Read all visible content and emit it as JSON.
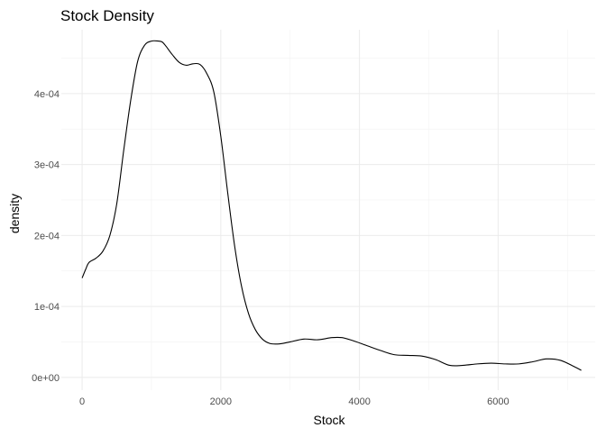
{
  "chart_data": {
    "type": "line",
    "title": "Stock Density",
    "xlabel": "Stock",
    "ylabel": "density",
    "xlim": [
      -300,
      7400
    ],
    "ylim": [
      -1.8e-05,
      0.00049
    ],
    "x_ticks": [
      0,
      2000,
      4000,
      6000
    ],
    "x_tick_labels": [
      "0",
      "2000",
      "4000",
      "6000"
    ],
    "y_ticks": [
      0,
      0.0001,
      0.0002,
      0.0003,
      0.0004
    ],
    "y_tick_labels": [
      "0e+00",
      "1e-04",
      "2e-04",
      "3e-04",
      "4e-04"
    ],
    "grid": true,
    "legend": "none",
    "series": [
      {
        "color": "#000000",
        "x": [
          0,
          50,
          100,
          200,
          300,
          400,
          500,
          600,
          700,
          800,
          900,
          1000,
          1100,
          1150,
          1200,
          1300,
          1400,
          1500,
          1600,
          1700,
          1800,
          1900,
          2000,
          2100,
          2200,
          2300,
          2400,
          2500,
          2600,
          2700,
          2800,
          2900,
          3000,
          3200,
          3400,
          3600,
          3750,
          3900,
          4100,
          4300,
          4500,
          4700,
          4900,
          5100,
          5300,
          5500,
          5700,
          5900,
          6100,
          6300,
          6500,
          6700,
          6900,
          7100,
          7200
        ],
        "y": [
          0.00014,
          0.000152,
          0.000162,
          0.000168,
          0.000178,
          0.0002,
          0.000245,
          0.00032,
          0.00039,
          0.000445,
          0.000468,
          0.000474,
          0.000474,
          0.000473,
          0.000468,
          0.000455,
          0.000444,
          0.00044,
          0.000442,
          0.000441,
          0.000428,
          0.000402,
          0.00034,
          0.00026,
          0.000185,
          0.000128,
          9e-05,
          6.7e-05,
          5.4e-05,
          4.8e-05,
          4.7e-05,
          4.8e-05,
          5e-05,
          5.4e-05,
          5.3e-05,
          5.6e-05,
          5.6e-05,
          5.2e-05,
          4.5e-05,
          3.8e-05,
          3.2e-05,
          3.1e-05,
          3e-05,
          2.5e-05,
          1.7e-05,
          1.7e-05,
          1.9e-05,
          2e-05,
          1.9e-05,
          1.9e-05,
          2.2e-05,
          2.6e-05,
          2.4e-05,
          1.5e-05,
          1e-05
        ]
      }
    ]
  }
}
